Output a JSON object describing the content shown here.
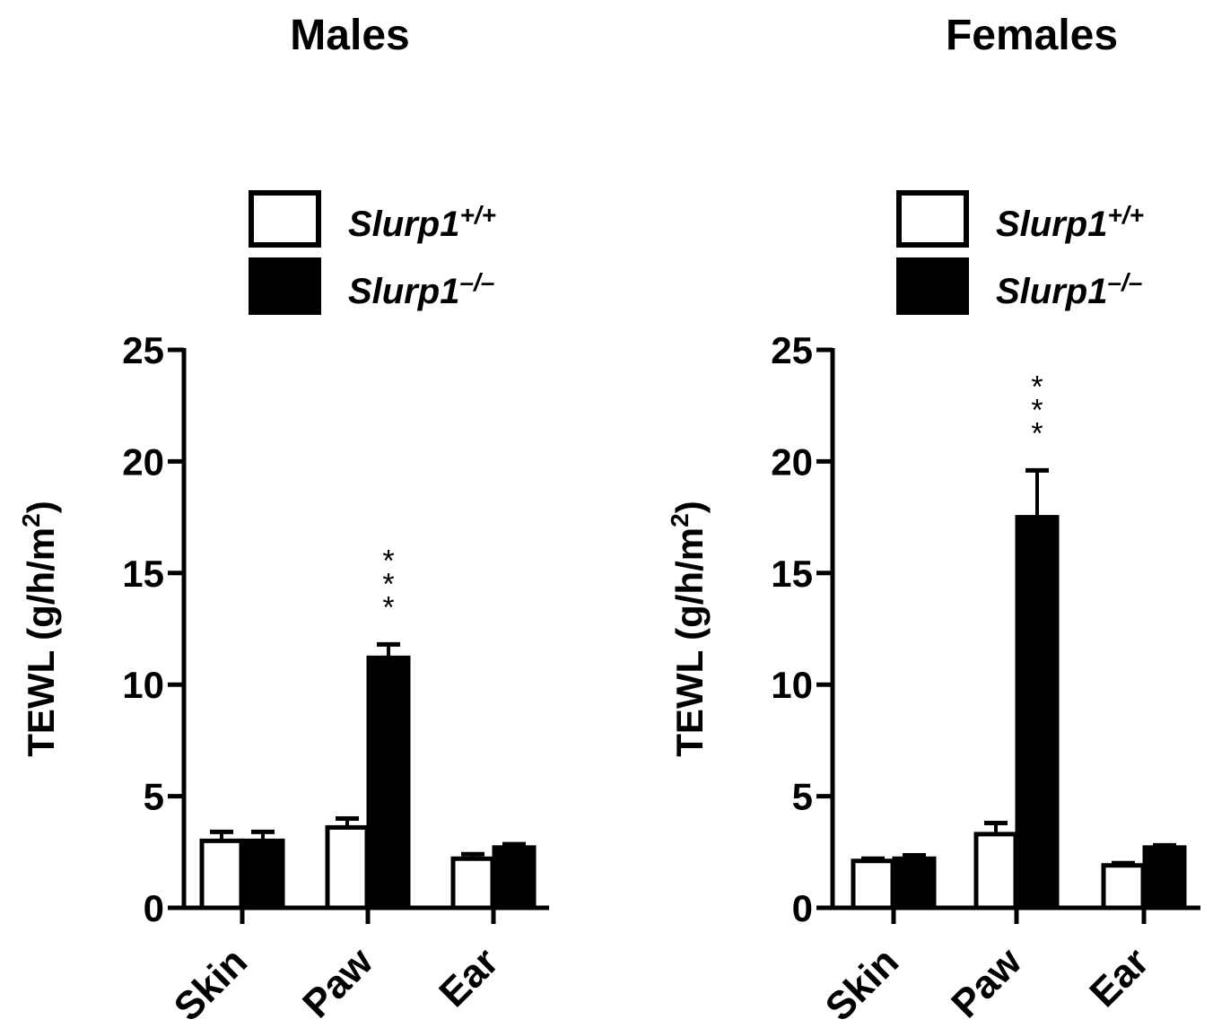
{
  "chart_data": [
    {
      "type": "bar",
      "title": "Males",
      "ylabel": "TEWL (g/h/m",
      "ylabel_sup": "2",
      "ylabel_close": ")",
      "ylim": [
        0,
        25
      ],
      "yticks": [
        "0",
        "5",
        "10",
        "15",
        "20",
        "25"
      ],
      "categories": [
        "Skin",
        "Paw",
        "Ear"
      ],
      "legend_position": "top-right",
      "series": [
        {
          "name": "Slurp1",
          "sup": "+/+",
          "fill": "#ffffff",
          "values": [
            3.0,
            3.6,
            2.2
          ],
          "errors": [
            0.4,
            0.4,
            0.2
          ]
        },
        {
          "name": "Slurp1",
          "sup": "–/–",
          "fill": "#000000",
          "values": [
            3.0,
            11.2,
            2.7
          ],
          "errors": [
            0.4,
            0.6,
            0.15
          ]
        }
      ],
      "annotations": [
        {
          "category": "Paw",
          "series": 1,
          "text": "***"
        }
      ]
    },
    {
      "type": "bar",
      "title": "Females",
      "ylabel": "TEWL (g/h/m",
      "ylabel_sup": "2",
      "ylabel_close": ")",
      "ylim": [
        0,
        25
      ],
      "yticks": [
        "0",
        "5",
        "10",
        "15",
        "20",
        "25"
      ],
      "categories": [
        "Skin",
        "Paw",
        "Ear"
      ],
      "legend_position": "top-right",
      "series": [
        {
          "name": "Slurp1",
          "sup": "+/+",
          "fill": "#ffffff",
          "values": [
            2.1,
            3.3,
            1.9
          ],
          "errors": [
            0.1,
            0.5,
            0.1
          ]
        },
        {
          "name": "Slurp1",
          "sup": "–/–",
          "fill": "#000000",
          "values": [
            2.2,
            17.5,
            2.7
          ],
          "errors": [
            0.15,
            2.1,
            0.1
          ]
        }
      ],
      "annotations": [
        {
          "category": "Paw",
          "series": 1,
          "text": "***"
        }
      ]
    }
  ]
}
